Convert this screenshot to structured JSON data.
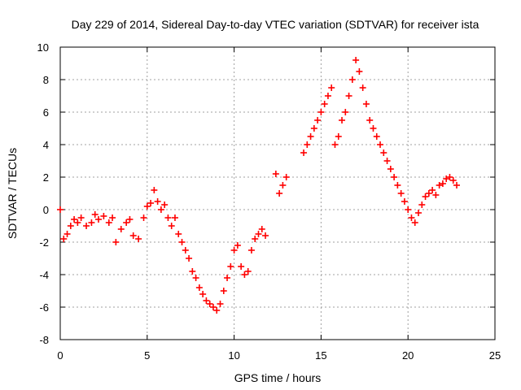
{
  "chart_data": {
    "type": "scatter",
    "title": "Day 229 of 2014, Sidereal Day-to-day VTEC variation (SDTVAR) for receiver ista",
    "xlabel": "GPS time / hours",
    "ylabel": "SDTVAR / TECUs",
    "xlim": [
      0,
      25
    ],
    "ylim": [
      -8,
      10
    ],
    "xticks": [
      0,
      5,
      10,
      15,
      20,
      25
    ],
    "yticks": [
      -8,
      -6,
      -4,
      -2,
      0,
      2,
      4,
      6,
      8,
      10
    ],
    "grid": true,
    "marker": "+",
    "color": "#ff0000",
    "series": [
      {
        "name": "SDTVAR",
        "x": [
          0.0,
          0.2,
          0.4,
          0.6,
          0.8,
          1.0,
          1.2,
          1.5,
          1.8,
          2.0,
          2.2,
          2.5,
          2.8,
          3.0,
          3.2,
          3.5,
          3.8,
          4.0,
          4.2,
          4.5,
          4.8,
          5.0,
          5.2,
          5.4,
          5.6,
          5.8,
          6.0,
          6.2,
          6.4,
          6.6,
          6.8,
          7.0,
          7.2,
          7.4,
          7.6,
          7.8,
          8.0,
          8.2,
          8.4,
          8.6,
          8.8,
          9.0,
          9.2,
          9.4,
          9.6,
          9.8,
          10.0,
          10.2,
          10.4,
          10.6,
          10.8,
          11.0,
          11.2,
          11.4,
          11.6,
          11.8,
          12.0,
          12.2,
          12.4,
          12.6,
          12.8,
          13.0,
          13.2,
          13.4,
          13.6,
          13.8,
          14.0,
          14.2,
          14.4,
          14.6,
          14.8,
          15.0,
          15.2,
          15.4,
          15.6,
          15.8,
          16.0,
          16.2,
          16.4,
          16.6,
          16.8,
          17.0,
          17.2,
          17.4,
          17.6,
          17.8,
          18.0,
          18.2,
          18.4,
          18.6,
          18.8,
          19.0,
          19.2,
          19.4,
          19.6,
          19.8,
          20.0,
          20.2,
          20.4,
          20.6,
          20.8,
          21.0,
          21.2,
          21.4,
          21.6,
          21.8,
          22.0,
          22.2,
          22.4,
          22.6,
          22.8
        ],
        "y": [
          0.0,
          -1.8,
          -1.5,
          -1.0,
          -0.6,
          -0.8,
          -0.5,
          -1.0,
          -0.8,
          -0.3,
          -0.6,
          -0.4,
          -0.8,
          -0.5,
          -2.0,
          -1.2,
          -0.8,
          -0.6,
          -1.6,
          -1.8,
          -0.5,
          0.2,
          0.4,
          1.2,
          0.5,
          0.0,
          0.3,
          -0.5,
          -1.0,
          -0.5,
          -1.5,
          -2.0,
          -2.5,
          -3.0,
          -3.8,
          -4.2,
          -4.8,
          -5.2,
          -5.6,
          -5.8,
          -6.0,
          -6.2,
          -5.8,
          -5.0,
          -4.2,
          -3.5,
          -2.5,
          -2.2,
          -3.5,
          -4.0,
          -3.8,
          -2.5,
          -1.8,
          -1.5,
          -1.2,
          -1.6,
          null,
          null,
          2.2,
          1.0,
          1.5,
          2.0,
          null,
          null,
          null,
          null,
          3.5,
          4.0,
          4.5,
          5.0,
          5.5,
          6.0,
          6.5,
          7.0,
          7.5,
          4.0,
          4.5,
          5.5,
          6.0,
          7.0,
          8.0,
          9.2,
          8.5,
          7.5,
          6.5,
          5.5,
          5.0,
          4.5,
          4.0,
          3.5,
          3.0,
          2.5,
          2.0,
          1.5,
          1.0,
          0.5,
          0.0,
          -0.5,
          -0.8,
          -0.2,
          0.3,
          0.8,
          1.0,
          1.2,
          0.9,
          1.5,
          1.6,
          1.9,
          2.0,
          1.8,
          1.5
        ]
      }
    ]
  }
}
